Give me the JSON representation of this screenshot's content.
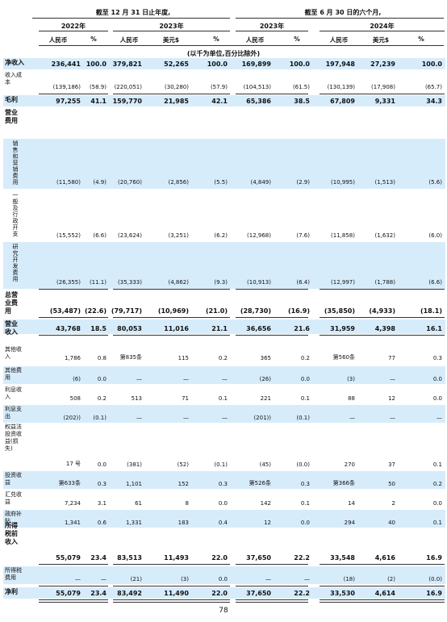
{
  "header": {
    "period1": "截至 12 月 31 日止年度,",
    "period2": "截至 6 月 30 日的六个月,",
    "years": [
      "2022年",
      "2023年",
      "2023年",
      "2024年"
    ],
    "cols": [
      "人民币",
      "%",
      "人民币",
      "美元$",
      "%",
      "人民币",
      "%",
      "人民币",
      "美元$",
      "%"
    ],
    "unit_note": "(以千为单位,百分比除外)"
  },
  "rows": [
    {
      "label": "净收入",
      "bold": true,
      "vals": [
        "236,441",
        "100.0",
        "379,821",
        "52,265",
        "100.0",
        "169,899",
        "100.0",
        "197,948",
        "27,239",
        "100.0"
      ]
    },
    {
      "label": "收入成本",
      "bold": false,
      "vals": [
        "(139,186)",
        "(58.9)",
        "(220,051)",
        "(30,280)",
        "(57.9)",
        "(104,513)",
        "(61.5)",
        "(130,139)",
        "(17,908)",
        "(65.7)"
      ]
    },
    {
      "label": "毛利",
      "bold": true,
      "vals": [
        "97,255",
        "41.1",
        "159,770",
        "21,985",
        "42.1",
        "65,386",
        "38.5",
        "67,809",
        "9,331",
        "34.3"
      ]
    },
    {
      "label": "营业费用",
      "bold": true,
      "vals": [
        "",
        "",
        "",
        "",
        "",
        "",
        "",
        "",
        "",
        ""
      ]
    },
    {
      "label": "销售和营销费用",
      "bold": false,
      "vals": [
        "(11,580)",
        "(4.9)",
        "(20,760)",
        "(2,856)",
        "(5.5)",
        "(4,849)",
        "(2.9)",
        "(10,995)",
        "(1,513)",
        "(5.6)"
      ]
    },
    {
      "label": "一般及行政开支",
      "bold": false,
      "vals": [
        "(15,552)",
        "(6.6)",
        "(23,624)",
        "(3,251)",
        "(6.2)",
        "(12,968)",
        "(7.6)",
        "(11,858)",
        "(1,632)",
        "(6.0)"
      ]
    },
    {
      "label": "研究开发费用",
      "bold": false,
      "vals": [
        "(26,355)",
        "(11.1)",
        "(35,333)",
        "(4,862)",
        "(9.3)",
        "(10,913)",
        "(6.4)",
        "(12,997)",
        "(1,788)",
        "(6.6)"
      ]
    },
    {
      "label": "总营业费用",
      "bold": true,
      "vals": [
        "(53,487)",
        "(22.6)",
        "(79,717)",
        "(10,969)",
        "(21.0)",
        "(28,730)",
        "(16.9)",
        "(35,850)",
        "(4,933)",
        "(18.1)"
      ]
    },
    {
      "label": "营业收入",
      "bold": true,
      "vals": [
        "43,768",
        "18.5",
        "80,053",
        "11,016",
        "21.1",
        "36,656",
        "21.6",
        "31,959",
        "4,398",
        "16.1"
      ]
    },
    {
      "label": "其他收入",
      "bold": false,
      "vals": [
        "1,786",
        "0.8",
        "第835条",
        "115",
        "0.2",
        "365",
        "0.2",
        "第560条",
        "77",
        "0.3"
      ]
    },
    {
      "label": "其他费用",
      "bold": false,
      "vals": [
        "(6)",
        "0.0",
        "—",
        "—",
        "—",
        "(26)",
        "0.0",
        "(3)",
        "—",
        "0.0"
      ]
    },
    {
      "label": "利息收入",
      "bold": false,
      "vals": [
        "508",
        "0.2",
        "513",
        "71",
        "0.1",
        "221",
        "0.1",
        "88",
        "12",
        "0.0"
      ]
    },
    {
      "label": "利息支出",
      "bold": false,
      "vals": [
        "(202))",
        "(0.1)",
        "—",
        "—",
        "—",
        "(201))",
        "(0.1)",
        "—",
        "—",
        "—"
      ]
    },
    {
      "label": "权益法投资收益(损失)",
      "bold": false,
      "vals": [
        "17 号",
        "0.0",
        "(381)",
        "(52)",
        "(0.1)",
        "(45)",
        "(0.0)",
        "270",
        "37",
        "0.1"
      ]
    },
    {
      "label": "投资收益",
      "bold": false,
      "vals": [
        "第633条",
        "0.3",
        "1,101",
        "152",
        "0.3",
        "第526条",
        "0.3",
        "第366条",
        "50",
        "0.2"
      ]
    },
    {
      "label": "汇兑收益",
      "bold": false,
      "vals": [
        "7,234",
        "3.1",
        "61",
        "8",
        "0.0",
        "142",
        "0.1",
        "14",
        "2",
        "0.0"
      ]
    },
    {
      "label": "政府补贴",
      "bold": false,
      "vals": [
        "1,341",
        "0.6",
        "1,331",
        "183",
        "0.4",
        "12",
        "0.0",
        "294",
        "40",
        "0.1"
      ]
    },
    {
      "label": "所得税前收入",
      "bold": true,
      "vals": [
        "55,079",
        "23.4",
        "83,513",
        "11,493",
        "22.0",
        "37,650",
        "22.2",
        "33,548",
        "4,616",
        "16.9"
      ]
    },
    {
      "label": "所得税费用",
      "bold": false,
      "vals": [
        "—",
        "—",
        "(21)",
        "(3)",
        "0.0",
        "—",
        "—",
        "(18)",
        "(2)",
        "(0.0)"
      ]
    },
    {
      "label": "净利",
      "bold": true,
      "vals": [
        "55,079",
        "23.4",
        "83,492",
        "11,490",
        "22.0",
        "37,650",
        "22.2",
        "33,530",
        "4,614",
        "16.9"
      ]
    }
  ],
  "footer": {
    "page_number": "78"
  }
}
